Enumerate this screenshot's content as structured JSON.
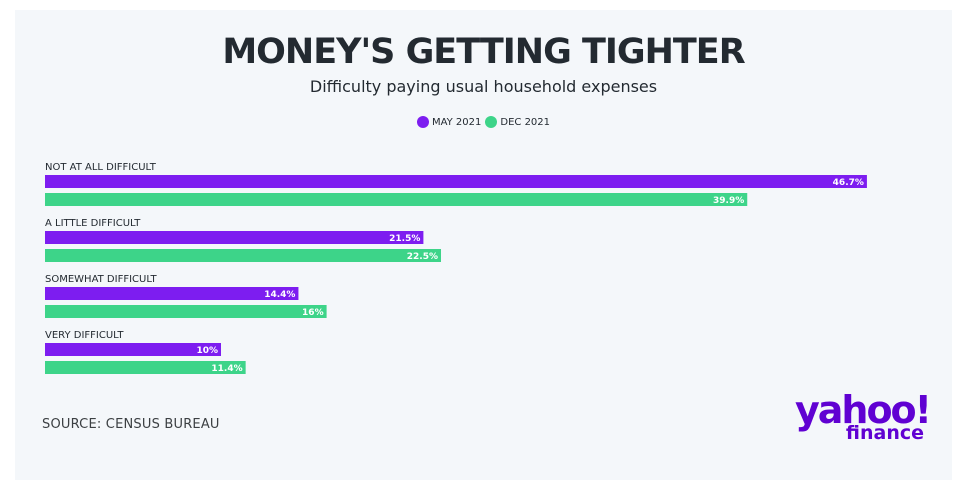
{
  "title": "MONEY'S GETTING TIGHTER",
  "subtitle": "Difficulty paying usual household expenses",
  "source": "SOURCE: CENSUS BUREAU",
  "logo": {
    "main": "yahoo!",
    "sub": "finance"
  },
  "colors": {
    "may": "#7d1df0",
    "dec": "#3dd489",
    "brand": "#6001d2"
  },
  "chart_data": {
    "type": "bar",
    "orientation": "horizontal",
    "title": "MONEY'S GETTING TIGHTER",
    "subtitle": "Difficulty paying usual household expenses",
    "legend_position": "top-center",
    "grid": false,
    "xlim": [
      0,
      50
    ],
    "categories": [
      "NOT AT ALL DIFFICULT",
      "A LITTLE DIFFICULT",
      "SOMEWHAT DIFFICULT",
      "VERY DIFFICULT"
    ],
    "series": [
      {
        "name": "MAY 2021",
        "values": [
          46.7,
          21.5,
          14.4,
          10
        ],
        "labels": [
          "46.7%",
          "21.5%",
          "14.4%",
          "10%"
        ],
        "color": "#7d1df0"
      },
      {
        "name": "DEC 2021",
        "values": [
          39.9,
          22.5,
          16,
          11.4
        ],
        "labels": [
          "39.9%",
          "22.5%",
          "16%",
          "11.4%"
        ],
        "color": "#3dd489"
      }
    ]
  }
}
